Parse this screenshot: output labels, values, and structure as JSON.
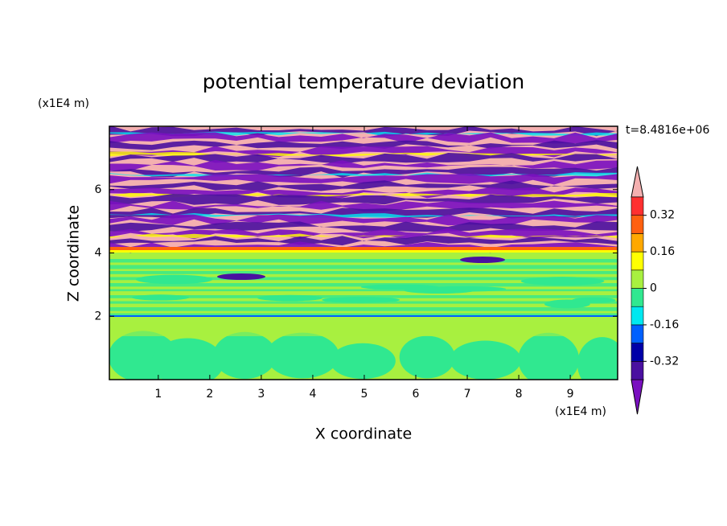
{
  "chart_data": {
    "type": "contour",
    "title": "potential temperature deviation",
    "x_label": "X coordinate",
    "y_label": "Z coordinate",
    "x_unit": "(x1E4 m)",
    "y_unit": "(x1E4 m)",
    "time_label": "t=8.4816e+06",
    "xlim": [
      0.05,
      9.92
    ],
    "ylim": [
      0,
      8
    ],
    "xticks": [
      1,
      2,
      3,
      4,
      5,
      6,
      7,
      8,
      9
    ],
    "yticks": [
      2,
      4,
      6
    ],
    "levels": [
      -0.4,
      -0.32,
      -0.24,
      -0.16,
      -0.08,
      0,
      0.08,
      0.16,
      0.24,
      0.32,
      0.4
    ],
    "colorbar_ticks": [
      -0.32,
      -0.16,
      0,
      0.16,
      0.32
    ],
    "colors": [
      "#7a10c0",
      "#4a10a0",
      "#0000a8",
      "#0060ff",
      "#00e8f0",
      "#30e890",
      "#a8f040",
      "#ffff00",
      "#ffa800",
      "#ff6010",
      "#ff3030",
      "#f4b0b0"
    ]
  }
}
